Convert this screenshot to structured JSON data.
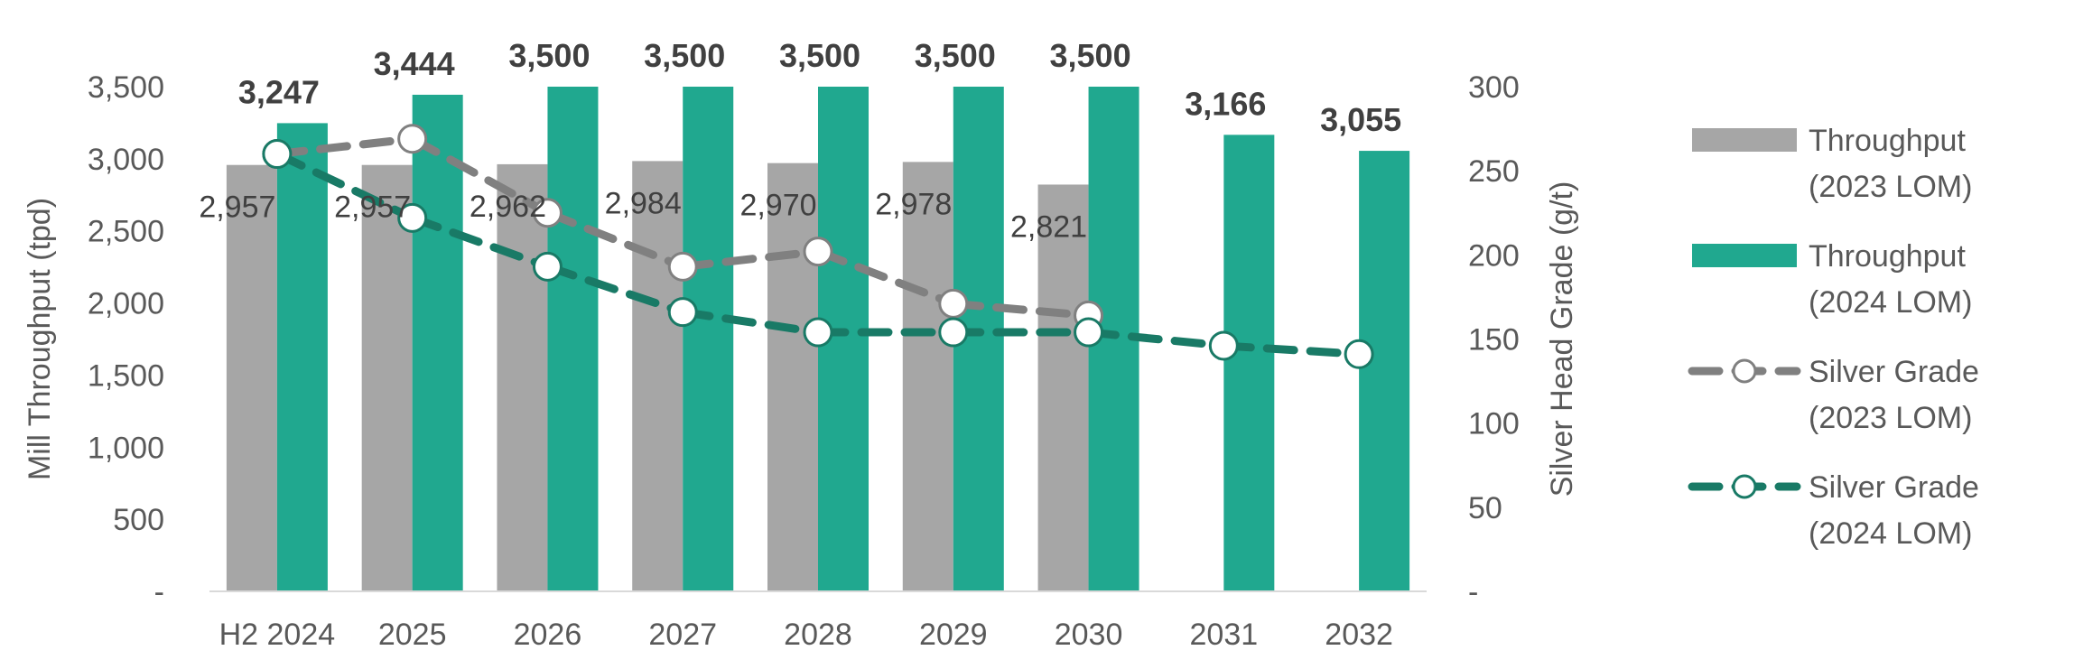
{
  "chart_data": {
    "type": "bar",
    "categories": [
      "H2 2024",
      "2025",
      "2026",
      "2027",
      "2028",
      "2029",
      "2030",
      "2031",
      "2032"
    ],
    "y_left": {
      "label": "Mill Throughput (tpd)",
      "range": [
        0,
        3500
      ],
      "ticks": [
        "-",
        "500",
        "1,000",
        "1,500",
        "2,000",
        "2,500",
        "3,000",
        "3,500"
      ]
    },
    "y_right": {
      "label": "Silver Head Grade (g/t)",
      "range": [
        0,
        300
      ],
      "ticks": [
        "-",
        "50",
        "100",
        "150",
        "200",
        "250",
        "300"
      ]
    },
    "series": [
      {
        "name": "Throughput (2023 LOM)",
        "kind": "bar",
        "axis": "left",
        "color": "#a6a6a6",
        "values": [
          2957,
          2957,
          2962,
          2984,
          2970,
          2978,
          2821,
          null,
          null
        ],
        "labels": [
          "2,957",
          "2,957",
          "2,962",
          "2,984",
          "2,970",
          "2,978",
          "2,821",
          null,
          null
        ]
      },
      {
        "name": "Throughput (2024 LOM)",
        "kind": "bar",
        "axis": "left",
        "color": "#20a88f",
        "values": [
          3247,
          3444,
          3500,
          3500,
          3500,
          3500,
          3500,
          3166,
          3055
        ],
        "labels": [
          "3,247",
          "3,444",
          "3,500",
          "3,500",
          "3,500",
          "3,500",
          "3,500",
          "3,166",
          "3,055"
        ]
      },
      {
        "name": "Silver Grade (2023 LOM)",
        "kind": "line",
        "axis": "right",
        "color": "#808080",
        "dashed": true,
        "values": [
          260,
          269,
          225,
          193,
          202,
          171,
          164,
          null,
          null
        ]
      },
      {
        "name": "Silver Grade (2024 LOM)",
        "kind": "line",
        "axis": "right",
        "color": "#197a66",
        "dashed": true,
        "values": [
          260,
          222,
          193,
          166,
          154,
          154,
          154,
          146,
          141
        ]
      }
    ],
    "legend": {
      "placement": "right",
      "items": [
        {
          "line1": "Throughput",
          "line2": "(2023 LOM)"
        },
        {
          "line1": "Throughput",
          "line2": "(2024 LOM)"
        },
        {
          "line1": "Silver Grade",
          "line2": "(2023 LOM)"
        },
        {
          "line1": "Silver Grade",
          "line2": "(2024 LOM)"
        }
      ]
    },
    "grid": false
  }
}
